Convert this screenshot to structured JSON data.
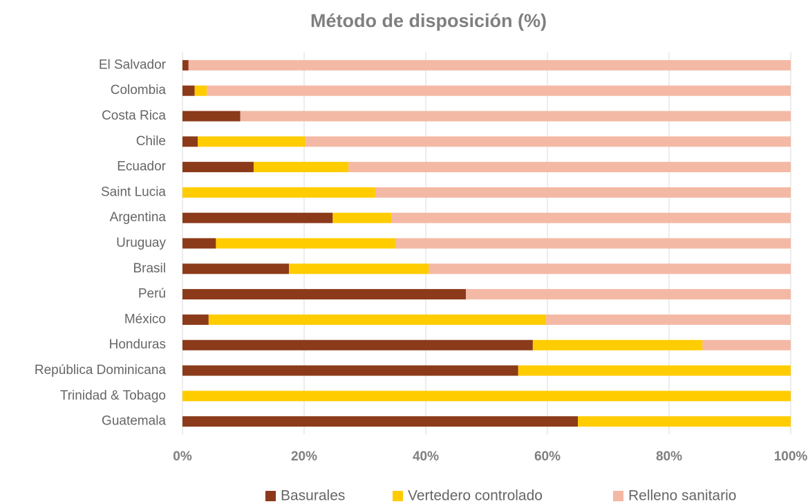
{
  "chart_data": {
    "type": "stacked_bar_horizontal",
    "title": "Método de disposición (%)",
    "categories": [
      "El Salvador",
      "Colombia",
      "Costa Rica",
      "Chile",
      "Ecuador",
      "Saint Lucia",
      "Argentina",
      "Uruguay",
      "Brasil",
      "Perú",
      "México",
      "Honduras",
      "República Dominicana",
      "Trinidad & Tobago",
      "Guatemala"
    ],
    "series": [
      {
        "name": "Basurales",
        "color": "#8b3a1a",
        "values": [
          1.0,
          2.0,
          9.5,
          2.5,
          11.7,
          0,
          24.7,
          5.5,
          17.5,
          46.6,
          4.3,
          57.6,
          55.2,
          0,
          65.0
        ]
      },
      {
        "name": "Vertedero controlado",
        "color": "#ffcc00",
        "values": [
          0,
          2.0,
          0,
          17.7,
          15.6,
          31.7,
          9.7,
          29.6,
          23.0,
          0,
          55.5,
          27.9,
          44.8,
          100,
          35.0
        ]
      },
      {
        "name": "Relleno sanitario",
        "color": "#f4b9a5",
        "values": [
          99.0,
          96.0,
          90.5,
          79.8,
          72.7,
          68.3,
          65.6,
          64.9,
          59.5,
          53.4,
          40.2,
          14.5,
          0,
          0,
          0
        ]
      }
    ],
    "xlim": [
      0,
      100
    ],
    "xticks": [
      {
        "value": 0,
        "label": "0%"
      },
      {
        "value": 20,
        "label": "20%"
      },
      {
        "value": 40,
        "label": "40%"
      },
      {
        "value": 60,
        "label": "60%"
      },
      {
        "value": 80,
        "label": "80%"
      },
      {
        "value": 100,
        "label": "100%"
      }
    ],
    "grid": true,
    "legend": "bottom"
  }
}
